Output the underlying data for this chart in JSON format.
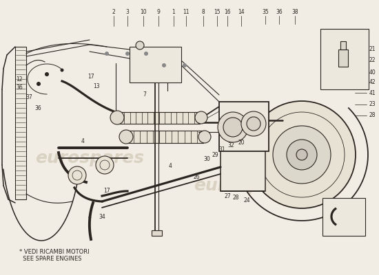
{
  "bg_color": "#f2ede4",
  "line_color": "#2a2520",
  "watermark_color": "#c9bfac",
  "watermark_text": "eurospares",
  "footnote_line1": "* VEDI RICAMBI MOTORI",
  "footnote_line2": "  SEE SPARE ENGINES",
  "lw": 0.8
}
